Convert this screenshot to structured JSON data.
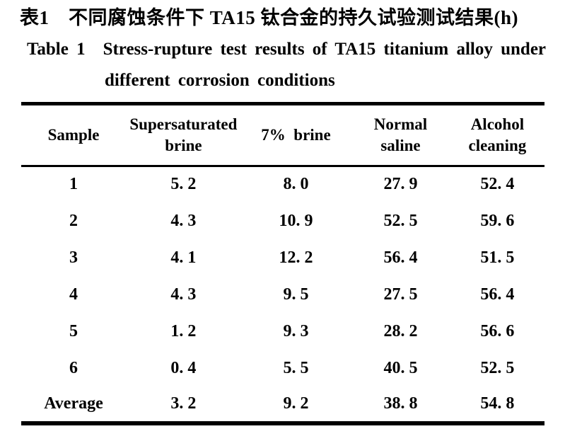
{
  "captions": {
    "zh": "表1 不同腐蚀条件下 TA15 钛合金的持久试验测试结果(h)",
    "en_line1": "Table 1 Stress-rupture test results of TA15 titanium alloy under",
    "en_line2": "different corrosion conditions"
  },
  "table": {
    "columns": [
      {
        "line1": "Sample"
      },
      {
        "line1": "Supersaturated",
        "line2": "brine"
      },
      {
        "line1": "7% brine"
      },
      {
        "line1": "Normal",
        "line2": "saline"
      },
      {
        "line1": "Alcohol",
        "line2": "cleaning"
      }
    ],
    "rows": [
      {
        "sample": "1",
        "values": [
          "5. 2",
          "8. 0",
          "27. 9",
          "52. 4"
        ]
      },
      {
        "sample": "2",
        "values": [
          "4. 3",
          "10. 9",
          "52. 5",
          "59. 6"
        ]
      },
      {
        "sample": "3",
        "values": [
          "4. 1",
          "12. 2",
          "56. 4",
          "51. 5"
        ]
      },
      {
        "sample": "4",
        "values": [
          "4. 3",
          "9. 5",
          "27. 5",
          "56. 4"
        ]
      },
      {
        "sample": "5",
        "values": [
          "1. 2",
          "9. 3",
          "28. 2",
          "56. 6"
        ]
      },
      {
        "sample": "6",
        "values": [
          "0. 4",
          "5. 5",
          "40. 5",
          "52. 5"
        ]
      },
      {
        "sample": "Average",
        "values": [
          "3. 2",
          "9. 2",
          "38. 8",
          "54. 8"
        ]
      }
    ]
  },
  "colors": {
    "background": "#ffffff",
    "text": "#000000",
    "rule": "#000000"
  },
  "chart_data": {
    "type": "table",
    "title_zh": "表1 不同腐蚀条件下 TA15 钛合金的持久试验测试结果(h)",
    "title_en": "Table 1 Stress-rupture test results of TA15 titanium alloy under different corrosion conditions",
    "unit": "h",
    "columns": [
      "Sample",
      "Supersaturated brine",
      "7% brine",
      "Normal saline",
      "Alcohol cleaning"
    ],
    "rows": [
      [
        "1",
        5.2,
        8.0,
        27.9,
        52.4
      ],
      [
        "2",
        4.3,
        10.9,
        52.5,
        59.6
      ],
      [
        "3",
        4.1,
        12.2,
        56.4,
        51.5
      ],
      [
        "4",
        4.3,
        9.5,
        27.5,
        56.4
      ],
      [
        "5",
        1.2,
        9.3,
        28.2,
        56.6
      ],
      [
        "6",
        0.4,
        5.5,
        40.5,
        52.5
      ],
      [
        "Average",
        3.2,
        9.2,
        38.8,
        54.8
      ]
    ]
  }
}
